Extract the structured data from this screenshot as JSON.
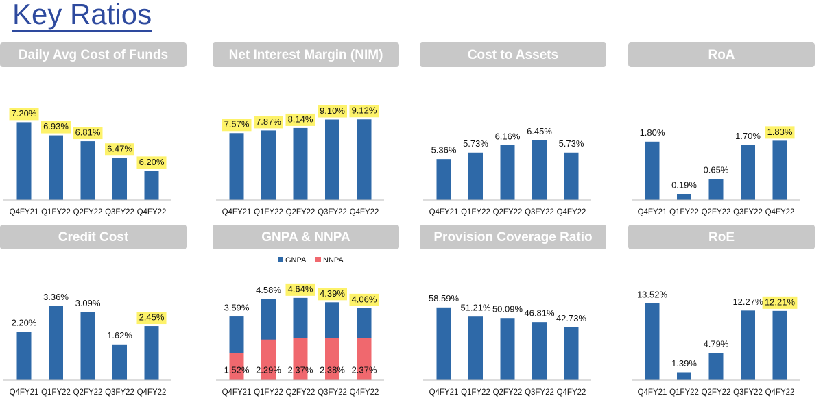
{
  "header": {
    "title": "Key Ratios"
  },
  "chart_data": [
    {
      "type": "bar",
      "title": "Daily Avg Cost of Funds",
      "categories": [
        "Q4FY21",
        "Q1FY22",
        "Q2FY22",
        "Q3FY22",
        "Q4FY22"
      ],
      "values": [
        7.2,
        6.93,
        6.81,
        6.47,
        6.2
      ],
      "value_labels": [
        "7.20%",
        "6.93%",
        "6.81%",
        "6.47%",
        "6.20%"
      ],
      "color": "#2e69a8",
      "ylim": [
        5.6,
        7.6
      ],
      "highlighted": [
        true,
        true,
        true,
        true,
        true
      ],
      "highlight_color": "#fdf26a"
    },
    {
      "type": "bar",
      "title": "Net Interest Margin (NIM)",
      "categories": [
        "Q4FY21",
        "Q1FY22",
        "Q2FY22",
        "Q3FY22",
        "Q4FY22"
      ],
      "values": [
        7.57,
        7.87,
        8.14,
        9.1,
        9.12
      ],
      "value_labels": [
        "7.57%",
        "7.87%",
        "8.14%",
        "9.10%",
        "9.12%"
      ],
      "color": "#2e69a8",
      "ylim": [
        0,
        11
      ],
      "highlighted": [
        true,
        true,
        true,
        true,
        true
      ],
      "highlight_color": "#fdf26a"
    },
    {
      "type": "bar",
      "title": "Cost to Assets",
      "categories": [
        "Q4FY21",
        "Q1FY22",
        "Q2FY22",
        "Q3FY22",
        "Q4FY22"
      ],
      "values": [
        5.36,
        5.73,
        6.16,
        6.45,
        5.73
      ],
      "value_labels": [
        "5.36%",
        "5.73%",
        "6.16%",
        "6.45%",
        "5.73%"
      ],
      "color": "#2e69a8",
      "ylim": [
        3,
        8.6
      ],
      "highlighted": [
        false,
        false,
        false,
        false,
        false
      ],
      "highlight_color": "#fdf26a"
    },
    {
      "type": "bar",
      "title": "RoA",
      "categories": [
        "Q4FY21",
        "Q1FY22",
        "Q2FY22",
        "Q3FY22",
        "Q4FY22"
      ],
      "values": [
        1.8,
        0.19,
        0.65,
        1.7,
        1.83
      ],
      "value_labels": [
        "1.80%",
        "0.19%",
        "0.65%",
        "1.70%",
        "1.83%"
      ],
      "color": "#2e69a8",
      "ylim": [
        0,
        3
      ],
      "highlighted": [
        false,
        false,
        false,
        false,
        true
      ],
      "highlight_color": "#fdf26a"
    },
    {
      "type": "bar",
      "title": "Credit Cost",
      "categories": [
        "Q4FY21",
        "Q1FY22",
        "Q2FY22",
        "Q3FY22",
        "Q4FY22"
      ],
      "values": [
        2.2,
        3.36,
        3.09,
        1.62,
        2.45
      ],
      "value_labels": [
        "2.20%",
        "3.36%",
        "3.09%",
        "1.62%",
        "2.45%"
      ],
      "color": "#2e69a8",
      "ylim": [
        0,
        4.5
      ],
      "highlighted": [
        false,
        false,
        false,
        false,
        true
      ],
      "highlight_color": "#fdf26a"
    },
    {
      "type": "bar",
      "title": "GNPA & NNPA",
      "categories": [
        "Q4FY21",
        "Q1FY22",
        "Q2FY22",
        "Q3FY22",
        "Q4FY22"
      ],
      "series": [
        {
          "name": "GNPA",
          "color": "#2e69a8",
          "values": [
            3.59,
            4.58,
            4.64,
            4.39,
            4.06
          ],
          "value_labels": [
            "3.59%",
            "4.58%",
            "4.64%",
            "4.39%",
            "4.06%"
          ],
          "highlighted": [
            false,
            false,
            true,
            true,
            true
          ]
        },
        {
          "name": "NNPA",
          "color": "#f0686e",
          "values": [
            1.52,
            2.29,
            2.37,
            2.38,
            2.37
          ],
          "value_labels": [
            "1.52%",
            "2.29%",
            "2.37%",
            "2.38%",
            "2.37%"
          ],
          "highlighted": [
            false,
            false,
            false,
            false,
            false
          ]
        }
      ],
      "ylim": [
        0,
        5.6
      ],
      "highlight_color": "#fdf26a"
    },
    {
      "type": "bar",
      "title": "Provision Coverage Ratio",
      "categories": [
        "Q4FY21",
        "Q1FY22",
        "Q2FY22",
        "Q3FY22",
        "Q4FY22"
      ],
      "values": [
        58.59,
        51.21,
        50.09,
        46.81,
        42.73
      ],
      "value_labels": [
        "58.59%",
        "51.21%",
        "50.09%",
        "46.81%",
        "42.73%"
      ],
      "color": "#2e69a8",
      "ylim": [
        0,
        80
      ],
      "highlighted": [
        false,
        false,
        false,
        false,
        false
      ],
      "highlight_color": "#fdf26a"
    },
    {
      "type": "bar",
      "title": "RoE",
      "categories": [
        "Q4FY21",
        "Q1FY22",
        "Q2FY22",
        "Q3FY22",
        "Q4FY22"
      ],
      "values": [
        13.52,
        1.39,
        4.79,
        12.27,
        12.21
      ],
      "value_labels": [
        "13.52%",
        "1.39%",
        "4.79%",
        "12.27%",
        "12.21%"
      ],
      "color": "#2e69a8",
      "ylim": [
        0,
        17.5
      ],
      "highlighted": [
        false,
        false,
        false,
        false,
        true
      ],
      "highlight_color": "#fdf26a"
    }
  ]
}
